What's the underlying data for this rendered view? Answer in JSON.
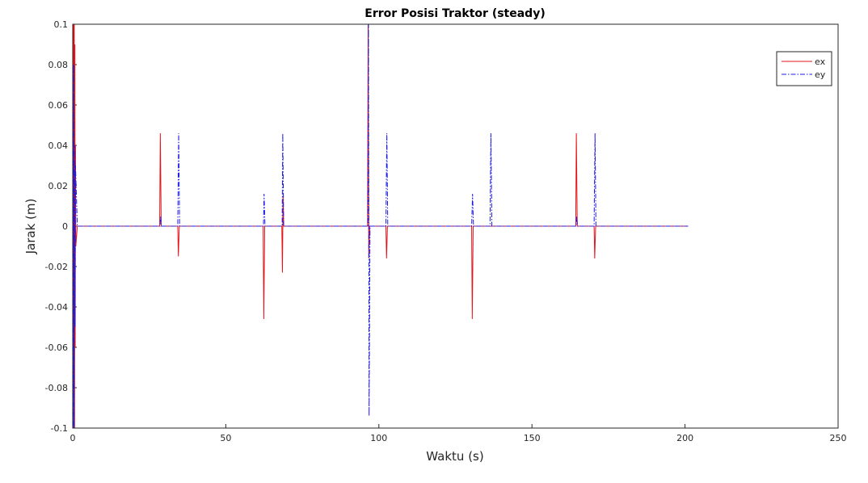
{
  "chart_data": {
    "type": "line",
    "title": "Error Posisi Traktor (steady)",
    "x_label": "Waktu (s)",
    "y_label": "Jarak (m)",
    "xlim": [
      0,
      250
    ],
    "xticks": [
      0,
      50,
      100,
      150,
      200,
      250
    ],
    "ylim": [
      -0.1,
      0.1
    ],
    "yticks": [
      -0.1,
      -0.08,
      -0.06,
      -0.04,
      -0.02,
      0,
      0.02,
      0.04,
      0.06,
      0.08,
      0.1
    ],
    "grid": false,
    "legend": "top-right",
    "series": [
      {
        "name": "ex",
        "color": "#e3131b",
        "linestyle": "solid",
        "x": [
          0,
          0.1,
          0.2,
          0.3,
          0.4,
          0.5,
          0.6,
          0.7,
          0.8,
          0.9,
          1.0,
          1.5,
          28.4,
          28.6,
          28.9,
          34.3,
          34.5,
          34.8,
          62.2,
          62.4,
          62.7,
          68.3,
          68.5,
          68.7,
          68.9,
          96.3,
          96.5,
          96.7,
          97,
          102.3,
          102.5,
          102.8,
          130.3,
          130.5,
          130.8,
          164.3,
          164.5,
          164.8,
          170.3,
          170.5,
          170.8,
          201
        ],
        "values": [
          0,
          0.1,
          -0.1,
          0.1,
          -0.08,
          0.1,
          -0.1,
          0.09,
          -0.06,
          0.04,
          -0.01,
          0,
          0,
          0.046,
          0,
          0,
          -0.015,
          0,
          0,
          -0.046,
          0,
          0,
          -0.023,
          0.015,
          0,
          0,
          0.1,
          -0.016,
          0,
          0,
          -0.016,
          0,
          0,
          -0.046,
          0,
          0,
          0.046,
          0,
          0,
          -0.016,
          0,
          0
        ]
      },
      {
        "name": "ey",
        "color": "#1a1ae6",
        "linestyle": "dashdot",
        "x": [
          0,
          0.15,
          0.3,
          0.45,
          0.6,
          0.75,
          0.9,
          1.5,
          28.5,
          28.7,
          28.9,
          34.3,
          34.6,
          34.9,
          62.3,
          62.5,
          62.8,
          68.4,
          68.6,
          68.9,
          96.4,
          96.6,
          96.8,
          97.1,
          102.3,
          102.6,
          102.9,
          130.3,
          130.6,
          130.9,
          136.3,
          136.6,
          136.9,
          164.4,
          164.6,
          164.9,
          170.3,
          170.6,
          170.9,
          201
        ],
        "values": [
          0,
          -0.1,
          0.08,
          -0.1,
          0.04,
          -0.05,
          0.03,
          0,
          0,
          0.005,
          0,
          0,
          0.046,
          0,
          0,
          0.016,
          0,
          0,
          0.046,
          0,
          0,
          0.1,
          -0.094,
          0,
          0,
          0.046,
          0,
          0,
          0.016,
          0,
          0,
          0.046,
          0,
          0,
          0.005,
          0,
          0,
          0.046,
          0,
          0
        ]
      }
    ]
  }
}
